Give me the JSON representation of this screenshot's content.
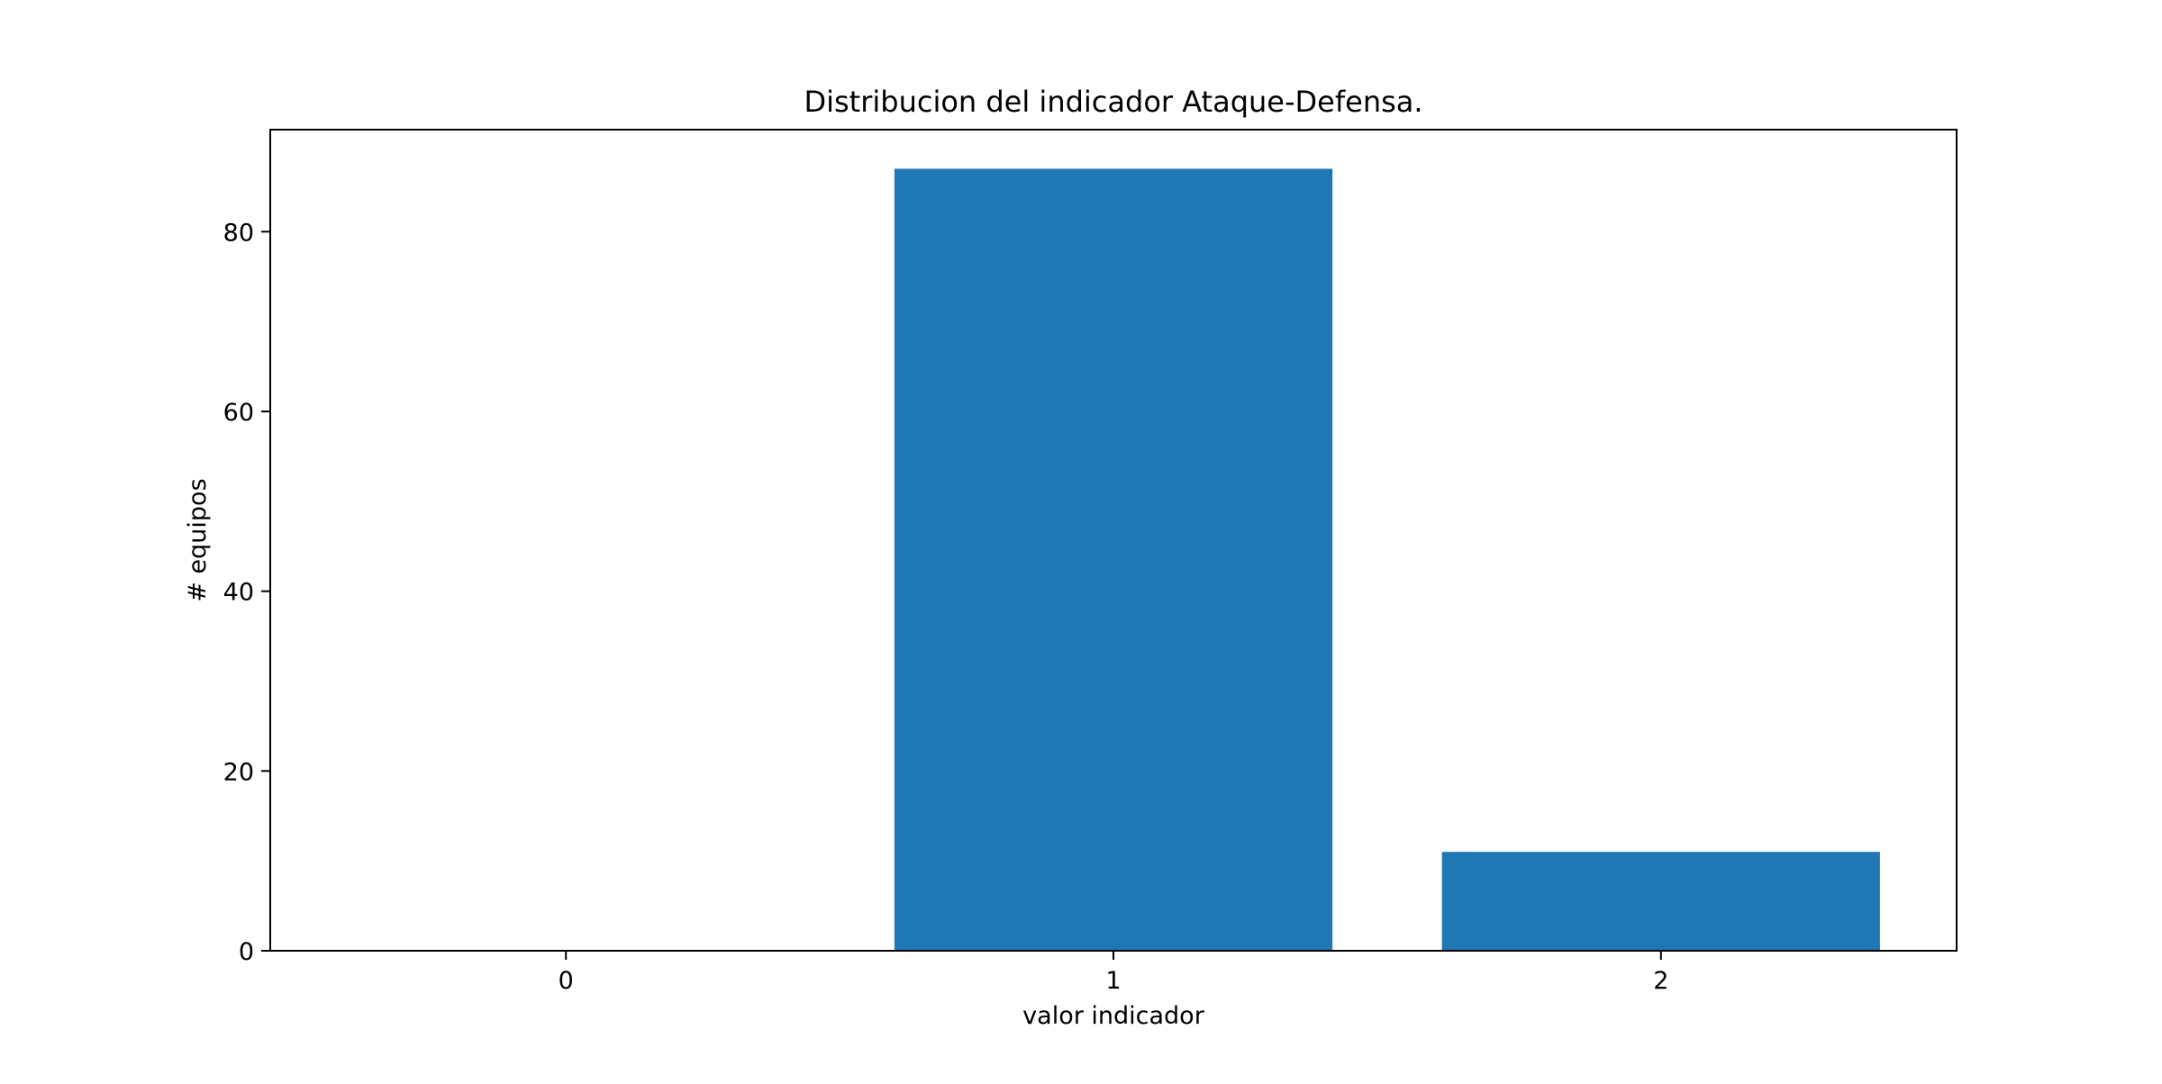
{
  "chart_data": {
    "type": "bar",
    "title": "Distribucion del indicador Ataque-Defensa.",
    "xlabel": "valor indicador",
    "ylabel": "# equipos",
    "categories": [
      "0",
      "1",
      "2"
    ],
    "values": [
      0,
      87,
      11
    ],
    "ylim": [
      0,
      91.35
    ],
    "yticks": [
      "0",
      "20",
      "40",
      "60",
      "80"
    ],
    "bar_color": "#1f77b4",
    "grid": false,
    "legend": "none"
  }
}
